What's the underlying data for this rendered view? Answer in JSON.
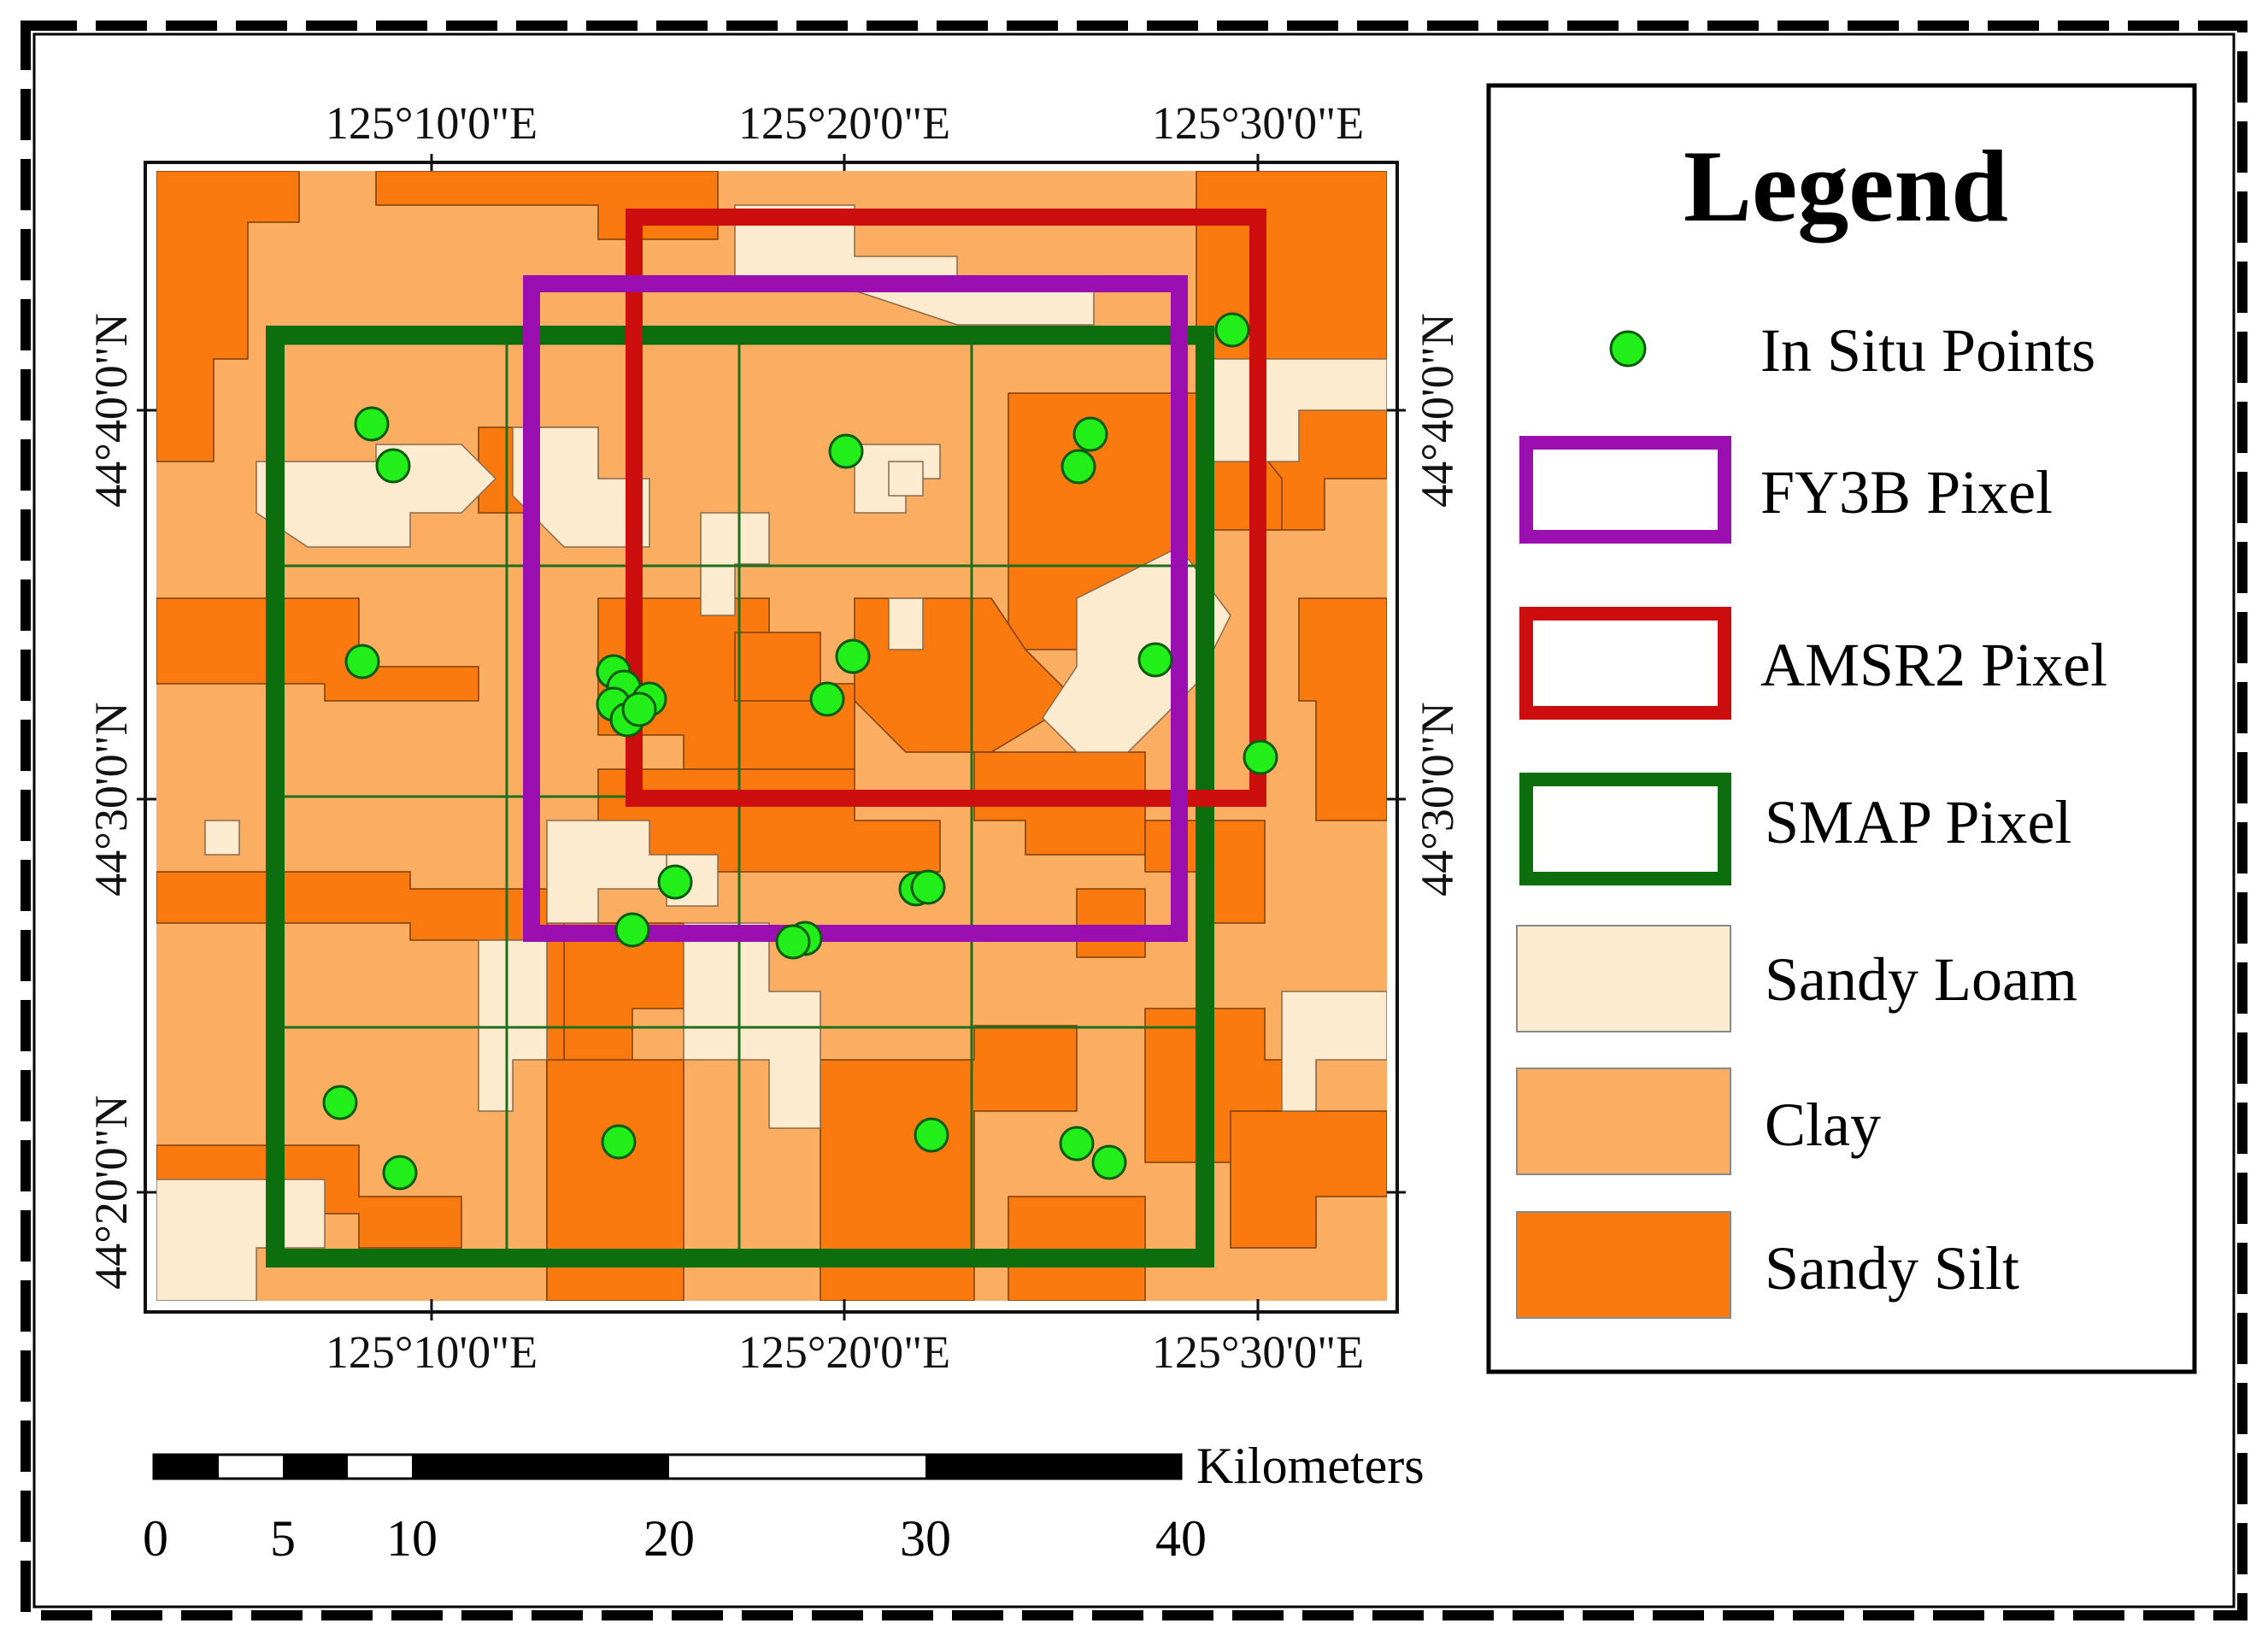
{
  "map": {
    "top_lon_labels": [
      "125°10'0\"E",
      "125°20'0\"E",
      "125°30'0\"E"
    ],
    "bottom_lon_labels": [
      "125°10'0\"E",
      "125°20'0\"E",
      "125°30'0\"E"
    ],
    "left_lat_labels": [
      "44°40'0\"N",
      "44°30'0\"N",
      "44°20'0\"N"
    ],
    "right_lat_labels": [
      "44°40'0\"N",
      "44°30'0\"N"
    ],
    "colors": {
      "sandy_loam": "#fdebd0",
      "clay": "#fbad62",
      "sandy_silt": "#fb7a10",
      "fy3b": "#9b0fb0",
      "amsr2": "#cc0e0e",
      "smap": "#0d6e0d",
      "in_situ": "#22ee1a",
      "grid": "#1d6e1d"
    }
  },
  "legend": {
    "title": "Legend",
    "items": [
      {
        "label": "In Situ Points",
        "icon": "green-dot-icon"
      },
      {
        "label": "FY3B Pixel",
        "icon": "purple-box-icon"
      },
      {
        "label": "AMSR2 Pixel",
        "icon": "red-box-icon"
      },
      {
        "label": "SMAP Pixel",
        "icon": "green-box-icon"
      },
      {
        "label": "Sandy Loam",
        "icon": "sandy-loam-swatch"
      },
      {
        "label": "Clay",
        "icon": "clay-swatch"
      },
      {
        "label": "Sandy Silt",
        "icon": "sandy-silt-swatch"
      }
    ]
  },
  "scale_bar": {
    "unit": "Kilometers",
    "ticks": [
      "0",
      "5",
      "10",
      "20",
      "30",
      "40"
    ]
  }
}
